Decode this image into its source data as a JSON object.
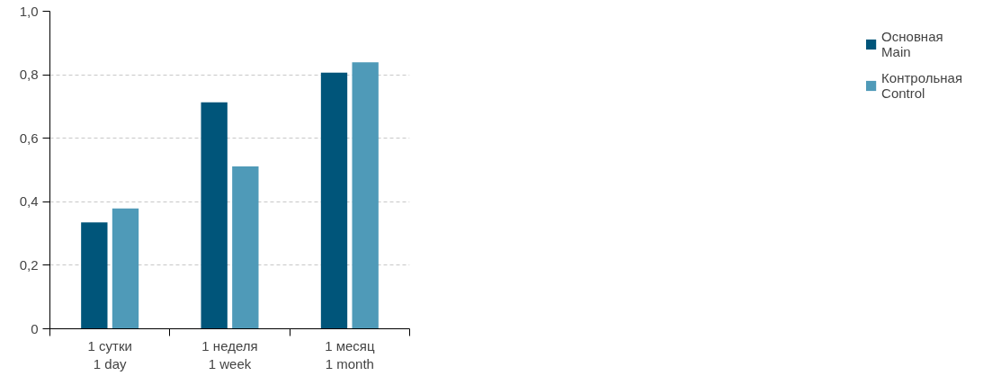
{
  "chart_data": {
    "type": "bar",
    "categories": [
      "1 сутки\n1 day",
      "1 неделя\n1 week",
      "1 месяц\n1 month"
    ],
    "series": [
      {
        "name": "Основная\nMain",
        "color": "#00557a",
        "values": [
          0.335,
          0.713,
          0.807
        ]
      },
      {
        "name": "Контрольная\nControl",
        "color": "#4f9ab8",
        "values": [
          0.379,
          0.511,
          0.839
        ]
      }
    ],
    "ylim": [
      0,
      1.0
    ],
    "yticks": [
      {
        "value": 0,
        "label": "0"
      },
      {
        "value": 0.2,
        "label": "0,2"
      },
      {
        "value": 0.4,
        "label": "0,4"
      },
      {
        "value": 0.6,
        "label": "0,6"
      },
      {
        "value": 0.8,
        "label": "0,8"
      },
      {
        "value": 1.0,
        "label": "1,0"
      }
    ],
    "grid": "y",
    "legend": "right"
  }
}
